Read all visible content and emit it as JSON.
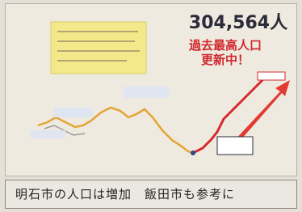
{
  "photo": {
    "headline_number": "304,564人",
    "banner_line1": "過去最高人口",
    "banner_line2": "更新中！"
  },
  "caption": "明石市の人口は増加　飯田市も参考に"
}
